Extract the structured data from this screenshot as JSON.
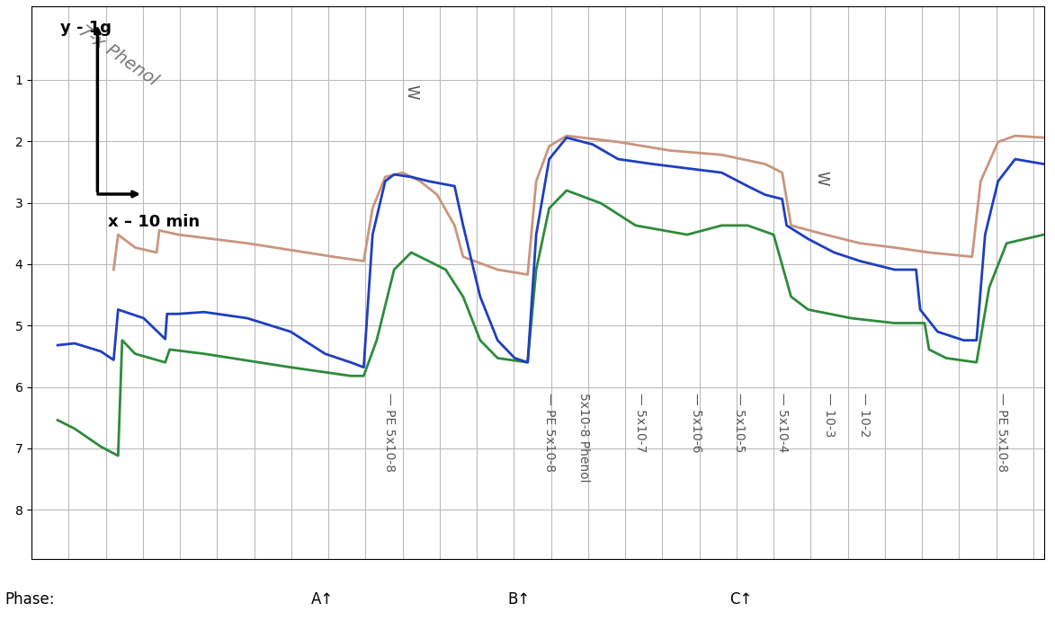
{
  "chart_data": {
    "type": "line",
    "note": {
      "text": "7-x Phenol",
      "x": 23.3
    },
    "scale_labels": {
      "y": "y - 1g",
      "x": "x – 10 min"
    },
    "xlim": [
      0,
      273
    ],
    "ylim": [
      8.8,
      -0.2
    ],
    "xticks": [
      0,
      10,
      20,
      30,
      40,
      50,
      60,
      70,
      80,
      90,
      100,
      110,
      120,
      130,
      140,
      150,
      160,
      170,
      180,
      190,
      200,
      210,
      220,
      230,
      240,
      250,
      260,
      270
    ],
    "yticks": [
      1,
      2,
      3,
      4,
      5,
      6,
      7,
      8
    ],
    "grid": true,
    "tick_labels": "y",
    "series": [
      {
        "color": "#c9957f",
        "x": [
          22.1,
          23.3,
          27.9,
          33.7,
          34.4,
          39.5,
          58.1,
          81.4,
          89.5,
          91.9,
          95.3,
          100.0,
          104.7,
          109.3,
          114.0,
          116.3,
          125.6,
          133.7,
          136.0,
          139.5,
          144.2,
          158.1,
          172.1,
          186.0,
          197.7,
          202.3,
          204.7,
          214.0,
          223.3,
          232.6,
          241.9,
          253.5,
          255.8,
          260.5,
          265.1,
          272.8
        ],
        "values": [
          4.09,
          3.52,
          3.73,
          3.81,
          3.45,
          3.52,
          3.66,
          3.88,
          3.95,
          3.09,
          2.58,
          2.51,
          2.65,
          2.87,
          3.37,
          3.88,
          4.09,
          4.17,
          2.65,
          2.08,
          1.91,
          2.01,
          2.15,
          2.22,
          2.37,
          2.51,
          3.37,
          3.52,
          3.66,
          3.73,
          3.81,
          3.88,
          2.65,
          2.01,
          1.91,
          1.94
        ]
      },
      {
        "color": "#2e8b3a",
        "x": [
          7.0,
          11.6,
          18.6,
          23.3,
          24.4,
          27.9,
          36.0,
          37.2,
          46.5,
          69.8,
          86.0,
          89.5,
          93.0,
          97.7,
          102.3,
          107.0,
          111.6,
          116.3,
          120.9,
          125.6,
          133.7,
          136.0,
          139.5,
          144.2,
          153.5,
          162.8,
          176.7,
          186.0,
          193.0,
          200.0,
          204.7,
          209.3,
          220.9,
          232.6,
          240.7,
          241.9,
          246.5,
          254.7,
          258.1,
          262.8,
          272.8
        ],
        "values": [
          6.54,
          6.68,
          6.97,
          7.12,
          5.24,
          5.46,
          5.6,
          5.39,
          5.46,
          5.68,
          5.82,
          5.82,
          5.24,
          4.09,
          3.81,
          3.95,
          4.09,
          4.53,
          5.24,
          5.53,
          5.6,
          4.09,
          3.09,
          2.8,
          3.01,
          3.37,
          3.52,
          3.37,
          3.37,
          3.52,
          4.53,
          4.74,
          4.88,
          4.96,
          4.96,
          5.39,
          5.53,
          5.6,
          4.38,
          3.66,
          3.52
        ]
      },
      {
        "color": "#1f3fbf",
        "x": [
          7.0,
          11.6,
          18.6,
          22.1,
          23.3,
          30.2,
          36.0,
          36.5,
          39.5,
          46.5,
          58.1,
          69.8,
          79.1,
          86.0,
          89.5,
          91.9,
          95.3,
          97.7,
          102.3,
          107.0,
          114.0,
          116.3,
          120.9,
          125.6,
          130.2,
          133.7,
          136.0,
          139.5,
          144.2,
          151.2,
          158.1,
          167.4,
          176.7,
          186.0,
          193.0,
          197.7,
          202.3,
          203.5,
          209.3,
          216.3,
          223.3,
          232.6,
          238.4,
          239.5,
          244.2,
          251.2,
          254.7,
          257.0,
          260.5,
          265.1,
          272.8
        ],
        "values": [
          5.32,
          5.29,
          5.42,
          5.56,
          4.74,
          4.88,
          5.22,
          4.81,
          4.81,
          4.78,
          4.88,
          5.1,
          5.46,
          5.6,
          5.68,
          3.52,
          2.65,
          2.54,
          2.58,
          2.65,
          2.73,
          3.37,
          4.53,
          5.24,
          5.53,
          5.6,
          3.52,
          2.29,
          1.94,
          2.05,
          2.29,
          2.37,
          2.44,
          2.51,
          2.73,
          2.87,
          2.94,
          3.37,
          3.59,
          3.81,
          3.95,
          4.09,
          4.09,
          4.74,
          5.1,
          5.24,
          5.24,
          3.52,
          2.65,
          2.29,
          2.37
        ]
      }
    ],
    "annotations": [
      {
        "text": "W",
        "x": 102.3
      },
      {
        "text": "W",
        "x": 212.8
      },
      {
        "text": "— PE 5x10-8",
        "x": 96.5
      },
      {
        "text": "— PE 5x10-8",
        "x": 139.5
      },
      {
        "text": "5x10-8 Phenol",
        "x": 148.8
      },
      {
        "text": "— 5x10-7",
        "x": 164.0
      },
      {
        "text": "— 5x10-6",
        "x": 179.0
      },
      {
        "text": "— 5x10-5",
        "x": 190.7
      },
      {
        "text": "— 5x10-4",
        "x": 202.3
      },
      {
        "text": "— 10-3",
        "x": 215.1
      },
      {
        "text": "— 10-2",
        "x": 224.4
      },
      {
        "text": "— PE 5x10-8",
        "x": 261.6
      }
    ],
    "phase": {
      "label": "Phase:",
      "markers": [
        {
          "text": "A↑",
          "x": 78.4
        },
        {
          "text": "B↑",
          "x": 131.4
        },
        {
          "text": "C↑",
          "x": 191.2
        }
      ]
    }
  }
}
